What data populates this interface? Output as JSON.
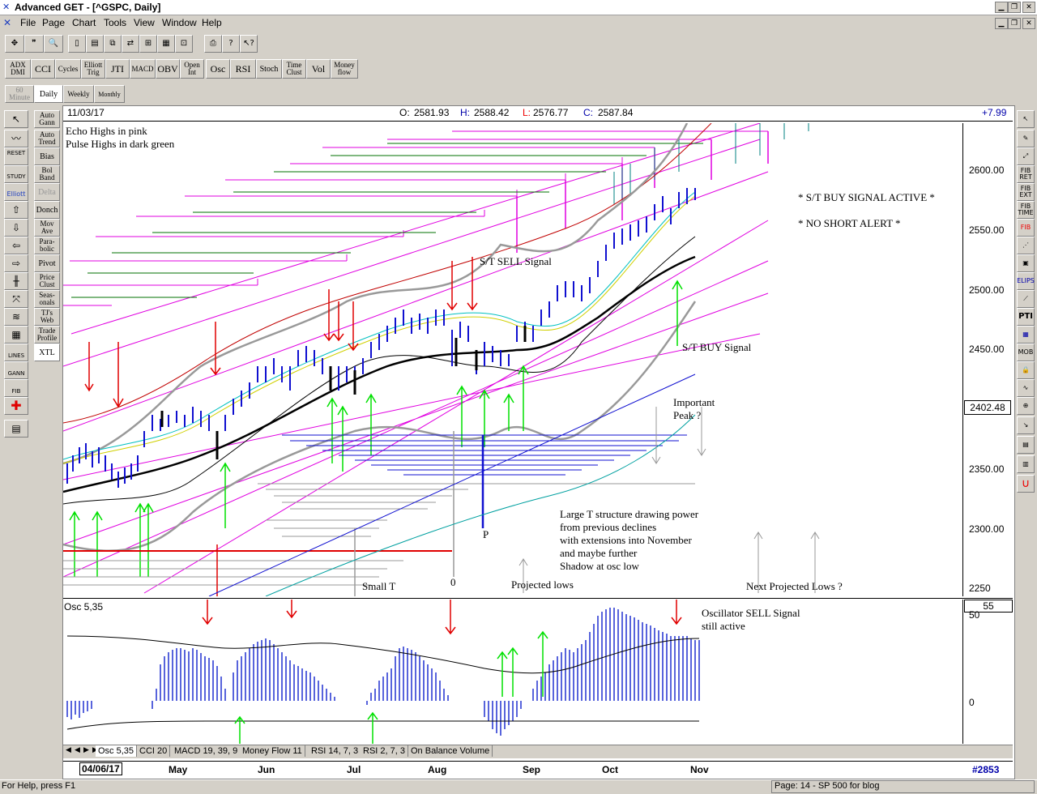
{
  "app": {
    "title": "Advanced GET - [^GSPC, Daily]"
  },
  "menu": [
    "File",
    "Page",
    "Chart",
    "Tools",
    "View",
    "Window",
    "Help"
  ],
  "toolbar_indicators": [
    "ADX DMI",
    "CCI",
    "Cycles",
    "Elliott Trig",
    "JTI",
    "MACD",
    "OBV",
    "Open Int",
    "Osc",
    "RSI",
    "Stoch",
    "Time Clust",
    "Vol",
    "Money flow"
  ],
  "timeframes": [
    "60 Minute",
    "Daily",
    "Weekly",
    "Monthly"
  ],
  "left_studies": [
    "Auto Gann",
    "Auto Trend",
    "Bias",
    "Bol Band",
    "Delta",
    "Donch",
    "Mov Ave",
    "Para-bolic",
    "Pivot",
    "Price Clust",
    "Seas-onals",
    "TJ's Web",
    "Trade Profile",
    "XTL"
  ],
  "left_tools": {
    "reset": "RESET",
    "study": "STUDY",
    "elliott": "Elliott",
    "lines": "LINES",
    "gann": "GANN",
    "fib": "FIB"
  },
  "right_tools": [
    "FIB RET",
    "FIB EXT",
    "FIB TIME",
    "FIB",
    "ELIPS",
    "PTI",
    "MOB"
  ],
  "header": {
    "date": "11/03/17",
    "o_label": "O:",
    "o": "2581.93",
    "h_label": "H:",
    "h": "2588.42",
    "l_label": "L:",
    "l": "2576.77",
    "c_label": "C:",
    "c": "2587.84",
    "change": "+7.99"
  },
  "price_axis": {
    "ticks": [
      "2600.00",
      "2550.00",
      "2500.00",
      "2450.00",
      "2350.00",
      "2300.00",
      "2250"
    ],
    "current": "2402.48"
  },
  "notes": {
    "echo": "Echo Highs in pink",
    "pulse": "Pulse Highs in dark green",
    "buy_active": "* S/T BUY SIGNAL ACTIVE *",
    "no_short": "* NO SHORT ALERT *",
    "st_sell": "S/T SELL Signal",
    "st_buy": "S/T BUY Signal",
    "important_peak": "Important\nPeak ?",
    "large_t": "Large T structure drawing power\nfrom previous declines\nwith extensions into November\nand maybe further\nShadow at osc low",
    "p_label": "P",
    "small_t": "Small T",
    "zero": "0",
    "projected_lows": "Projected lows",
    "next_projected": "Next Projected Lows ?",
    "osc_sell": "Oscillator SELL Signal\nstill active"
  },
  "oscillator": {
    "label": "Osc 5,35",
    "value": "55",
    "ticks": [
      "50",
      "0"
    ]
  },
  "tabs": [
    "Osc 5,35",
    "CCI 20",
    "MACD 19, 39, 9",
    "Money Flow 11",
    "RSI 14, 7, 3",
    "RSI 2, 7, 3",
    "On Balance Volume"
  ],
  "time_axis": {
    "start": "04/06/17",
    "months": [
      "May",
      "Jun",
      "Jul",
      "Aug",
      "Sep",
      "Oct",
      "Nov"
    ],
    "bar_count": "#2853"
  },
  "status": {
    "left": "For Help, press F1",
    "right": "Page: 14 - SP 500 for blog"
  },
  "colors": {
    "echo": "#e000e0",
    "pulse": "#007000",
    "sell_arrow": "#e00000",
    "buy_arrow": "#00e000",
    "price_bar": "#2020e0",
    "osc": "#2030d0"
  }
}
